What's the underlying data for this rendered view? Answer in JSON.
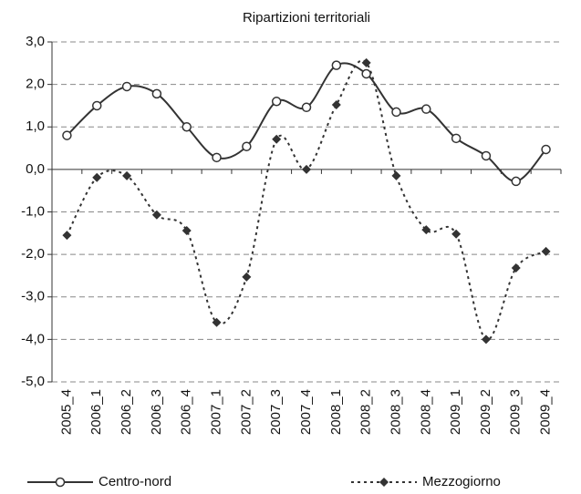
{
  "chart_data": {
    "type": "line",
    "title": "Ripartizioni territoriali",
    "categories": [
      "2005_4",
      "2006_1",
      "2006_2",
      "2006_3",
      "2006_4",
      "2007_1",
      "2007_2",
      "2007_3",
      "2007_4",
      "2008_1",
      "2008_2",
      "2008_3",
      "2008_4",
      "2009_1",
      "2009_2",
      "2009_3",
      "2009_4"
    ],
    "series": [
      {
        "name": "Centro-nord",
        "color": "#333333",
        "values": [
          0.8,
          1.5,
          1.95,
          1.78,
          1.0,
          0.28,
          0.54,
          1.6,
          1.46,
          2.45,
          2.25,
          1.35,
          1.42,
          0.73,
          0.32,
          -0.28,
          0.47
        ]
      },
      {
        "name": "Mezzogiorno",
        "color": "#333333",
        "values": [
          -1.55,
          -0.19,
          -0.15,
          -1.07,
          -1.44,
          -3.6,
          -2.53,
          0.71,
          0.0,
          1.52,
          2.51,
          -0.15,
          -1.42,
          -1.52,
          -4.0,
          -2.32,
          -1.93
        ]
      }
    ],
    "ylim": [
      -5,
      3
    ],
    "yticks": [
      {
        "value": 3,
        "label": "3,0"
      },
      {
        "value": 2,
        "label": "2,0"
      },
      {
        "value": 1,
        "label": "1,0"
      },
      {
        "value": 0,
        "label": "0,0"
      },
      {
        "value": -1,
        "label": "-1,0"
      },
      {
        "value": -2,
        "label": "-2,0"
      },
      {
        "value": -3,
        "label": "-3,0"
      },
      {
        "value": -4,
        "label": "-4,0"
      },
      {
        "value": -5,
        "label": "-5,0"
      }
    ],
    "grid": true,
    "legend": "bottom"
  }
}
